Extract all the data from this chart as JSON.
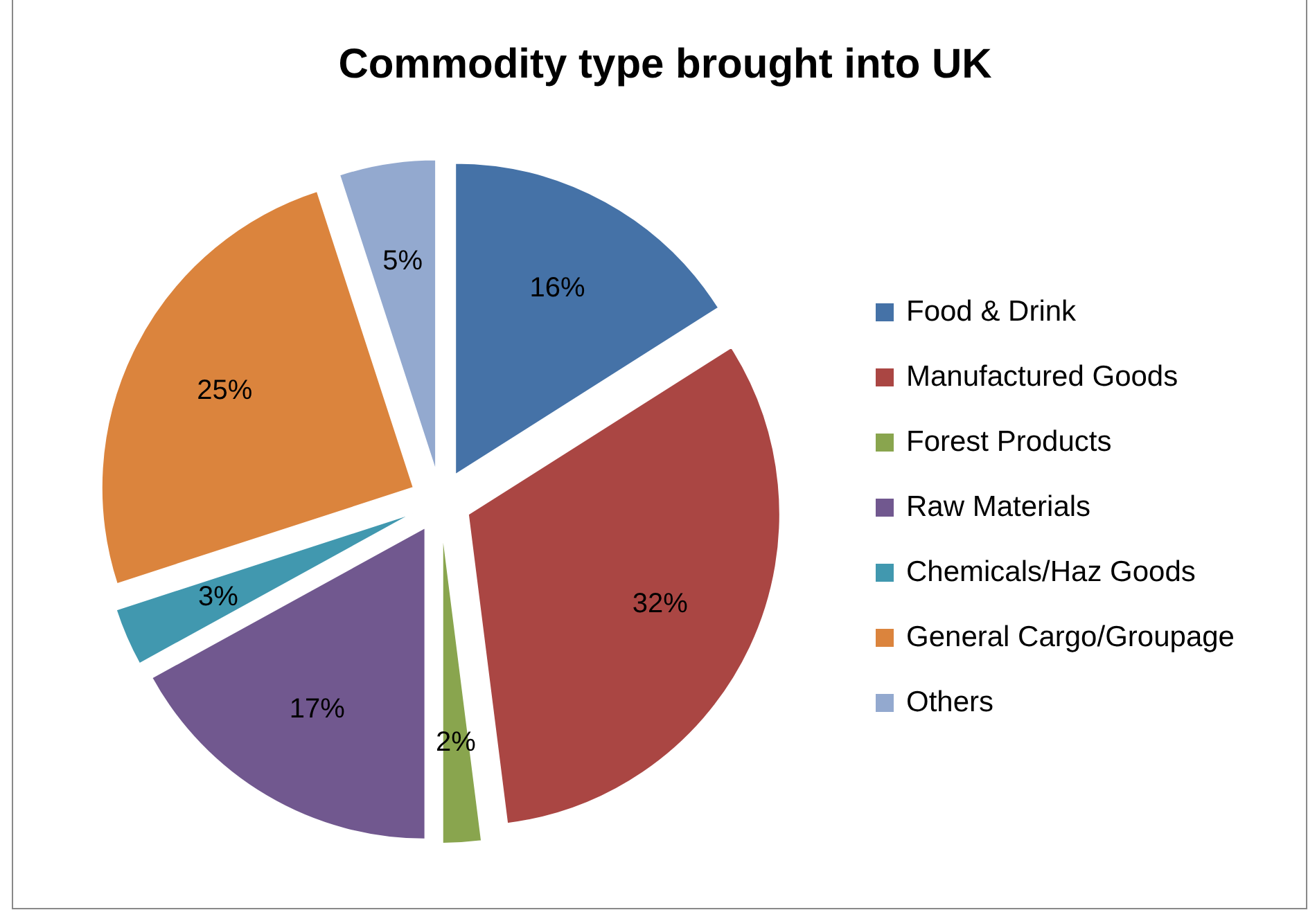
{
  "chart_data": {
    "type": "pie",
    "title": "Commodity type brought into UK",
    "categories": [
      "Food & Drink",
      "Manufactured Goods",
      "Forest Products",
      "Raw Materials",
      "Chemicals/Haz Goods",
      "General Cargo/Groupage",
      "Others"
    ],
    "values": [
      16,
      32,
      2,
      17,
      3,
      25,
      5
    ],
    "colors": [
      "#4572a7",
      "#aa4643",
      "#89a54e",
      "#71588f",
      "#4198af",
      "#db843d",
      "#93a9cf"
    ],
    "value_labels": [
      "16%",
      "32%",
      "2%",
      "17%",
      "3%",
      "25%",
      "5%"
    ],
    "legend": "right"
  }
}
